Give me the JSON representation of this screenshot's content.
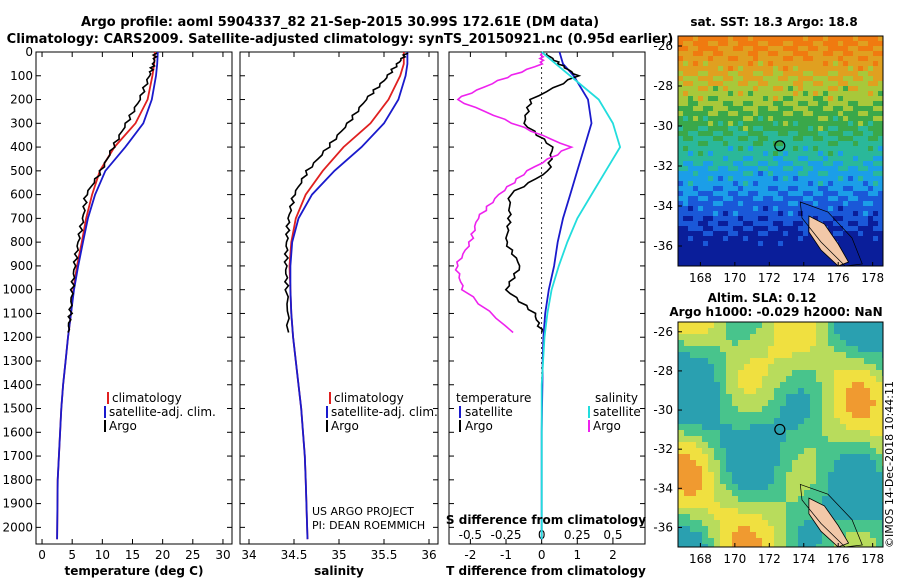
{
  "header": {
    "line1": "Argo profile: aoml 5904337_82 21-Sep-2015 30.99S 172.61E (DM data)",
    "line2": "Climatology: CARS2009. Satellite-adjusted climatology: synTS_20150921.nc (0.95d earlier)"
  },
  "colors": {
    "climatology": "#e02020",
    "satellite": "#1a1acc",
    "argo": "#000000",
    "sal_satellite": "#22dddd",
    "sal_argo": "#ee22ee"
  },
  "chart_data": [
    {
      "type": "line",
      "id": "temperature",
      "xlabel": "temperature (deg C)",
      "xlim": [
        -1,
        31.5
      ],
      "ylim": [
        0,
        2070
      ],
      "y_reversed": true,
      "xticks": [
        0,
        5,
        10,
        15,
        20,
        25,
        30
      ],
      "yticks": [
        0,
        100,
        200,
        300,
        400,
        500,
        600,
        700,
        800,
        900,
        1000,
        1100,
        1200,
        1300,
        1400,
        1500,
        1600,
        1700,
        1800,
        1900,
        2000
      ],
      "legend": [
        "climatology",
        "satellite-adj. clim.",
        "Argo"
      ],
      "series": [
        {
          "name": "climatology",
          "color": "#e02020",
          "x": [
            18.7,
            18.6,
            18.3,
            17.5,
            15.5,
            12.0,
            9.6,
            8.3,
            7.3,
            6.6,
            5.8,
            5.2,
            4.8,
            4.3,
            3.9,
            3.5,
            3.2,
            3.0,
            2.8,
            2.6,
            2.5
          ],
          "y": [
            0,
            50,
            100,
            200,
            300,
            400,
            500,
            600,
            700,
            800,
            900,
            1000,
            1100,
            1200,
            1300,
            1400,
            1500,
            1600,
            1700,
            1800,
            2050
          ]
        },
        {
          "name": "satellite-adj. clim.",
          "color": "#1a1acc",
          "x": [
            19.2,
            19.1,
            18.9,
            18.2,
            16.8,
            13.8,
            10.5,
            8.8,
            7.6,
            6.8,
            6.0,
            5.3,
            4.8,
            4.3,
            3.9,
            3.5,
            3.2,
            3.0,
            2.8,
            2.6,
            2.5
          ],
          "y": [
            0,
            50,
            100,
            200,
            300,
            400,
            500,
            600,
            700,
            800,
            900,
            1000,
            1100,
            1200,
            1300,
            1400,
            1500,
            1600,
            1700,
            1800,
            2050
          ]
        },
        {
          "name": "Argo",
          "color": "#000000",
          "x": [
            18.8,
            18.5,
            17.8,
            16.2,
            14.0,
            11.8,
            9.8,
            7.3,
            6.8,
            6.0,
            5.4,
            5.0,
            4.7,
            4.3
          ],
          "y": [
            5,
            50,
            100,
            200,
            300,
            400,
            500,
            600,
            700,
            800,
            900,
            1000,
            1100,
            1180
          ]
        }
      ]
    },
    {
      "type": "line",
      "id": "salinity",
      "xlabel": "salinity",
      "xlim": [
        33.9,
        36.1
      ],
      "ylim": [
        0,
        2070
      ],
      "y_reversed": true,
      "xticks": [
        34,
        34.5,
        35,
        35.5,
        36
      ],
      "xticklabels": [
        "34",
        "34.5",
        "35",
        "35.5",
        "36"
      ],
      "legend": [
        "climatology",
        "satellite-adj. clim.",
        "Argo"
      ],
      "series": [
        {
          "name": "climatology",
          "color": "#e02020",
          "x": [
            35.72,
            35.72,
            35.68,
            35.55,
            35.35,
            35.05,
            34.82,
            34.63,
            34.52,
            34.47,
            34.45,
            34.46,
            34.47,
            34.49,
            34.52,
            34.55,
            34.58,
            34.6,
            34.62,
            34.63,
            34.65
          ],
          "y": [
            0,
            50,
            100,
            200,
            300,
            400,
            500,
            600,
            700,
            800,
            900,
            1000,
            1100,
            1200,
            1300,
            1400,
            1500,
            1600,
            1700,
            1800,
            2050
          ]
        },
        {
          "name": "satellite-adj. clim.",
          "color": "#1a1acc",
          "x": [
            35.76,
            35.76,
            35.74,
            35.66,
            35.5,
            35.25,
            34.95,
            34.7,
            34.55,
            34.48,
            34.46,
            34.46,
            34.47,
            34.49,
            34.52,
            34.55,
            34.58,
            34.6,
            34.62,
            34.63,
            34.65
          ],
          "y": [
            0,
            50,
            100,
            200,
            300,
            400,
            500,
            600,
            700,
            800,
            900,
            1000,
            1100,
            1200,
            1300,
            1400,
            1500,
            1600,
            1700,
            1800,
            2050
          ]
        },
        {
          "name": "Argo",
          "color": "#000000",
          "x": [
            35.75,
            35.65,
            35.5,
            35.3,
            35.1,
            34.88,
            34.65,
            34.5,
            34.44,
            34.42,
            34.41,
            34.42,
            34.44
          ],
          "y": [
            5,
            50,
            120,
            200,
            300,
            400,
            500,
            600,
            700,
            800,
            900,
            1000,
            1180
          ]
        }
      ],
      "annotations": [
        "US ARGO PROJECT",
        "PI: DEAN ROEMMICH"
      ]
    },
    {
      "type": "line",
      "id": "difference",
      "xlabel": "T difference from climatology",
      "xlabel_top": "S difference from climatology",
      "xlim": [
        -2.6,
        2.9
      ],
      "ylim": [
        0,
        2070
      ],
      "y_reversed": true,
      "xticks": [
        -2,
        -1,
        0,
        1,
        2
      ],
      "xticks_top": [
        -0.5,
        -0.25,
        0,
        0.25,
        0.5
      ],
      "xticklabels_top": [
        "-0.5",
        "-0.25",
        "0",
        "0.25",
        "0.5"
      ],
      "legend_left_title": "temperature",
      "legend_right_title": "salinity",
      "legend_left": [
        "satellite",
        "Argo"
      ],
      "legend_right": [
        "satellite",
        "Argo"
      ],
      "series": [
        {
          "name": "T satellite",
          "color": "#1a1acc",
          "x": [
            0.5,
            0.6,
            0.9,
            1.3,
            1.4,
            1.2,
            1.0,
            0.8,
            0.6,
            0.45,
            0.35,
            0.2,
            0.1,
            0.05,
            0.03,
            0.02,
            0.01,
            0.0,
            0.0,
            0.0,
            0.0
          ],
          "y": [
            0,
            50,
            100,
            200,
            300,
            400,
            500,
            600,
            700,
            800,
            900,
            1000,
            1100,
            1200,
            1300,
            1400,
            1500,
            1600,
            1700,
            1800,
            2050
          ]
        },
        {
          "name": "T Argo",
          "color": "#000000",
          "x": [
            0.1,
            0.5,
            1.0,
            -0.3,
            -0.5,
            0.3,
            0.2,
            -0.9,
            -0.9,
            -1.0,
            -0.6,
            -1.0,
            -0.2,
            0.0
          ],
          "y": [
            5,
            50,
            100,
            200,
            300,
            400,
            500,
            600,
            700,
            800,
            900,
            1000,
            1100,
            1180
          ]
        },
        {
          "name": "S satellite",
          "color": "#22dddd",
          "x": [
            0.0,
            0.1,
            0.2,
            0.4,
            0.5,
            0.55,
            0.45,
            0.35,
            0.25,
            0.18,
            0.12,
            0.07,
            0.04,
            0.02,
            0.01,
            0.0,
            0.0,
            0.0,
            0.0,
            0.0,
            0.0
          ],
          "y": [
            0,
            50,
            100,
            200,
            300,
            400,
            500,
            600,
            700,
            800,
            900,
            1000,
            1100,
            1200,
            1300,
            1400,
            1500,
            1600,
            1700,
            1800,
            2050
          ]
        },
        {
          "name": "S Argo",
          "color": "#ee22ee",
          "x": [
            0.0,
            0.0,
            -0.3,
            -0.6,
            -0.2,
            0.2,
            -0.1,
            -0.3,
            -0.45,
            -0.5,
            -0.6,
            -0.55,
            -0.2
          ],
          "y": [
            5,
            50,
            120,
            200,
            300,
            400,
            500,
            600,
            700,
            800,
            900,
            1000,
            1180
          ]
        }
      ]
    },
    {
      "type": "heatmap",
      "id": "sst_map",
      "title": "sat. SST: 18.3 Argo: 18.8",
      "xlim": [
        166.7,
        178.6
      ],
      "ylim": [
        -37,
        -25.5
      ],
      "xticks": [
        168,
        170,
        172,
        174,
        176,
        178
      ],
      "yticks": [
        -26,
        -28,
        -30,
        -32,
        -34,
        -36
      ],
      "marker": {
        "lon": 172.61,
        "lat": -30.99
      }
    },
    {
      "type": "heatmap",
      "id": "sla_map",
      "title": "Altim. SLA: 0.12",
      "subtitle": "Argo h1000: -0.029 h2000: NaN",
      "xlim": [
        166.7,
        178.6
      ],
      "ylim": [
        -37,
        -25.5
      ],
      "xticks": [
        168,
        170,
        172,
        174,
        176,
        178
      ],
      "yticks": [
        -26,
        -28,
        -30,
        -32,
        -34,
        -36
      ],
      "marker": {
        "lon": 172.61,
        "lat": -30.99
      }
    }
  ],
  "footer": {
    "credit": "©IMOS 14-Dec-2018 10:44:11"
  }
}
